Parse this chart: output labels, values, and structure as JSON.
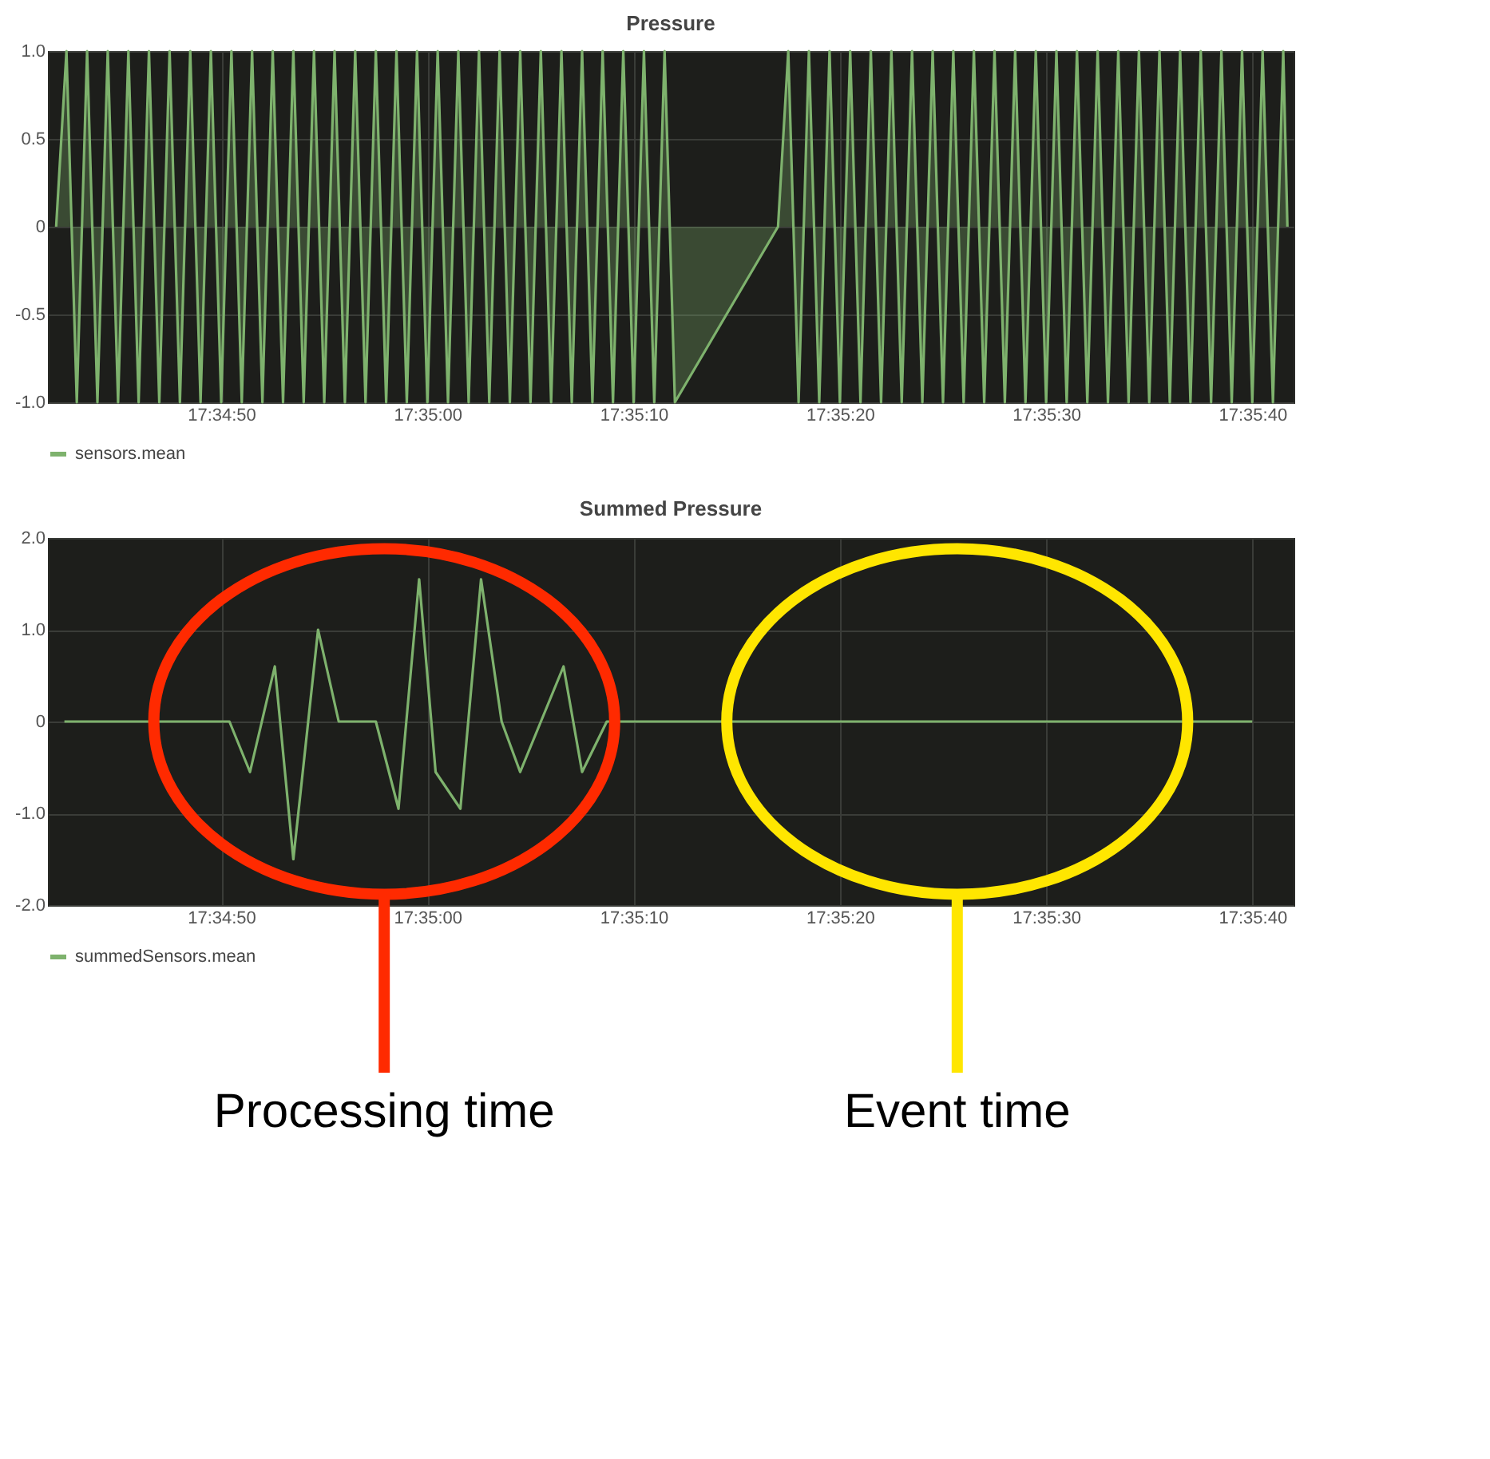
{
  "chart_data": [
    {
      "type": "area",
      "title": "Pressure",
      "series": [
        {
          "name": "sensors.mean",
          "color": "#7eb26d",
          "x": [
            17.578333,
            17.578472,
            17.578611,
            17.57875,
            17.578889,
            17.579028,
            17.579167,
            17.579306,
            17.579444,
            17.579583,
            17.579722,
            17.579861,
            17.58,
            17.580139,
            17.580278,
            17.580417,
            17.580556,
            17.580694,
            17.580833,
            17.580972,
            17.581111,
            17.58125,
            17.581389,
            17.581528,
            17.581667,
            17.581806,
            17.581944,
            17.582083,
            17.582222,
            17.582361,
            17.5825,
            17.582639,
            17.582778,
            17.582917,
            17.583056,
            17.583194,
            17.583333,
            17.583472,
            17.583611,
            17.58375,
            17.583889,
            17.584028,
            17.584167,
            17.584306,
            17.584444,
            17.584583,
            17.584722,
            17.584861,
            17.585,
            17.585139,
            17.585278,
            17.585417,
            17.585556,
            17.585694,
            17.585833,
            17.585972,
            17.586111,
            17.58625,
            17.586389,
            17.586528,
            17.586667,
            17.588056,
            17.588194,
            17.588333,
            17.588472,
            17.588611,
            17.58875,
            17.588889,
            17.589028,
            17.589167,
            17.589306,
            17.589444,
            17.589583,
            17.589722,
            17.589861,
            17.59,
            17.590139,
            17.590278,
            17.590417,
            17.590556,
            17.590694,
            17.590833,
            17.590972,
            17.591111,
            17.59125,
            17.591389,
            17.591528,
            17.591667,
            17.591806,
            17.591944,
            17.592083,
            17.592222,
            17.592361,
            17.5925,
            17.592639,
            17.592778,
            17.592917,
            17.593056,
            17.593194,
            17.593333,
            17.593472,
            17.593611,
            17.59375,
            17.593889,
            17.594028,
            17.594167,
            17.594306,
            17.594444,
            17.594583,
            17.594722,
            17.594861,
            17.594917
          ],
          "values": [
            0,
            1,
            -1,
            1,
            -1,
            1,
            -1,
            1,
            -1,
            1,
            -1,
            1,
            -1,
            1,
            -1,
            1,
            -1,
            1,
            -1,
            1,
            -1,
            1,
            -1,
            1,
            -1,
            1,
            -1,
            1,
            -1,
            1,
            -1,
            1,
            -1,
            1,
            -1,
            1,
            -1,
            1,
            -1,
            1,
            -1,
            1,
            -1,
            1,
            -1,
            1,
            -1,
            1,
            -1,
            1,
            -1,
            1,
            -1,
            1,
            -1,
            1,
            -1,
            1,
            -1,
            1,
            -1,
            0,
            1,
            -1,
            1,
            -1,
            1,
            -1,
            1,
            -1,
            1,
            -1,
            1,
            -1,
            1,
            -1,
            1,
            -1,
            1,
            -1,
            1,
            -1,
            1,
            -1,
            1,
            -1,
            1,
            -1,
            1,
            -1,
            1,
            -1,
            1,
            -1,
            1,
            -1,
            1,
            -1,
            1,
            -1,
            1,
            -1,
            1,
            -1,
            1,
            -1,
            1,
            -1,
            1,
            -1,
            1,
            0
          ]
        }
      ],
      "xlim": [
        17.578222,
        17.595
      ],
      "xticks": [
        {
          "value": 17.580556,
          "label": "17:34:50"
        },
        {
          "value": 17.583333,
          "label": "17:35:00"
        },
        {
          "value": 17.586111,
          "label": "17:35:10"
        },
        {
          "value": 17.588889,
          "label": "17:35:20"
        },
        {
          "value": 17.591667,
          "label": "17:35:30"
        },
        {
          "value": 17.594444,
          "label": "17:35:40"
        }
      ],
      "ylim": [
        -1,
        1
      ],
      "yticks": [
        {
          "value": -1,
          "label": "-1.0"
        },
        {
          "value": -0.5,
          "label": "-0.5"
        },
        0,
        {
          "value": 0.5,
          "label": "0.5"
        },
        {
          "value": 1,
          "label": "1.0"
        }
      ],
      "grid": true,
      "legend": "bottom left"
    },
    {
      "type": "line",
      "title": "Summed Pressure",
      "series": [
        {
          "name": "summedSensors.mean",
          "color": "#7eb26d",
          "x": [
            17.578444,
            17.580667,
            17.580944,
            17.581278,
            17.581528,
            17.581861,
            17.582139,
            17.582639,
            17.582944,
            17.583222,
            17.583444,
            17.583778,
            17.584056,
            17.584333,
            17.584583,
            17.585167,
            17.585417,
            17.58575,
            17.594444
          ],
          "values": [
            0,
            0,
            -0.55,
            0.6,
            -1.5,
            1.0,
            0,
            0,
            -0.95,
            1.55,
            -0.55,
            -0.95,
            1.55,
            0,
            -0.55,
            0.6,
            -0.55,
            0,
            0
          ]
        }
      ],
      "xlim": [
        17.578222,
        17.595
      ],
      "xticks": [
        {
          "value": 17.580556,
          "label": "17:34:50"
        },
        {
          "value": 17.583333,
          "label": "17:35:00"
        },
        {
          "value": 17.586111,
          "label": "17:35:10"
        },
        {
          "value": 17.588889,
          "label": "17:35:20"
        },
        {
          "value": 17.591667,
          "label": "17:35:30"
        },
        {
          "value": 17.594444,
          "label": "17:35:40"
        }
      ],
      "ylim": [
        -2,
        2
      ],
      "yticks": [
        {
          "value": -2,
          "label": "-2.0"
        },
        {
          "value": -1,
          "label": "-1.0"
        },
        0,
        {
          "value": 1,
          "label": "1.0"
        },
        {
          "value": 2,
          "label": "2.0"
        }
      ],
      "grid": true,
      "legend": "bottom left",
      "annotations": [
        "Processing time",
        "Event time"
      ]
    }
  ]
}
